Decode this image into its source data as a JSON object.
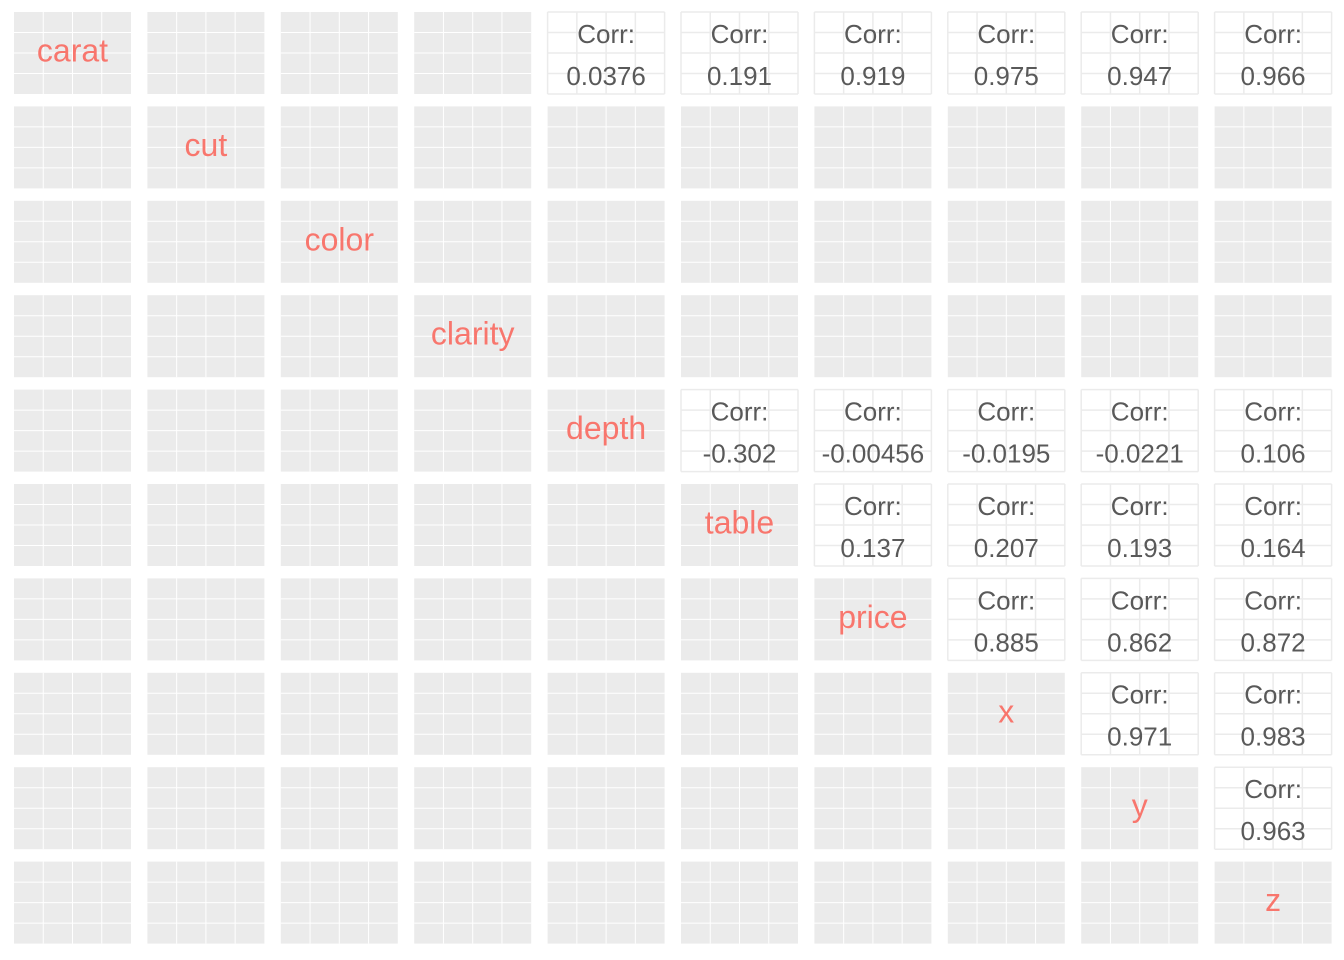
{
  "chart_data": {
    "type": "pairs",
    "variables": [
      "carat",
      "cut",
      "color",
      "clarity",
      "depth",
      "table",
      "price",
      "x",
      "y",
      "z"
    ],
    "corr_label": "Corr:",
    "correlation_rows": [
      {
        "variable": "carat",
        "values": [
          0.0376,
          0.191,
          0.919,
          0.975,
          0.947,
          0.966
        ]
      },
      {
        "variable": "depth",
        "values": [
          -0.302,
          -0.00456,
          -0.0195,
          -0.0221,
          0.106
        ]
      },
      {
        "variable": "table",
        "values": [
          0.137,
          0.207,
          0.193,
          0.164
        ]
      },
      {
        "variable": "price",
        "values": [
          0.885,
          0.862,
          0.872
        ]
      },
      {
        "variable": "x",
        "values": [
          0.971,
          0.983
        ]
      },
      {
        "variable": "y",
        "values": [
          0.963
        ]
      }
    ]
  }
}
